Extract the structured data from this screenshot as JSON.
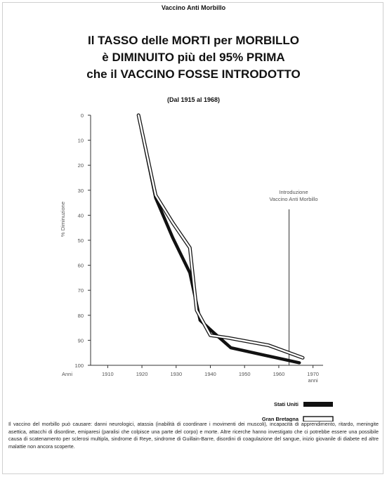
{
  "header": {
    "topline": "Vaccino Anti Morbillo",
    "title_lines": [
      "Il TASSO delle MORTI per MORBILLO",
      "è DIMINUITO più del 95% PRIMA",
      "che il VACCINO FOSSE INTRODOTTO"
    ],
    "subtitle": "(Dal 1915 al 1968)"
  },
  "chart_data": {
    "type": "line",
    "title": "",
    "xlabel": "Anni",
    "x_unit_label": "anni",
    "ylabel": "% Diminuzione",
    "xlim": [
      1905,
      1975
    ],
    "ylim": [
      0,
      100
    ],
    "y_inverted": true,
    "x_ticks": [
      1910,
      1920,
      1930,
      1940,
      1950,
      1960,
      1970
    ],
    "y_ticks": [
      0,
      10,
      20,
      30,
      40,
      50,
      60,
      70,
      80,
      90,
      100
    ],
    "series": [
      {
        "name": "Stati Uniti",
        "style": "solid-thick",
        "x": [
          1919,
          1924,
          1929,
          1934,
          1937,
          1941,
          1946,
          1956,
          1966
        ],
        "y": [
          0,
          33,
          49,
          63,
          82,
          87,
          93,
          96,
          99
        ]
      },
      {
        "name": "Gran Bretagna",
        "style": "double-outline",
        "x": [
          1919,
          1924,
          1929,
          1934,
          1936,
          1940,
          1945,
          1957,
          1967
        ],
        "y": [
          0,
          32,
          43,
          53,
          78,
          88,
          89,
          92,
          97
        ]
      }
    ],
    "annotation": {
      "text_lines": [
        "Introduzione",
        "Vaccino Anti Morbillo"
      ],
      "x": 1963
    },
    "legend_position": "bottom-right",
    "grid": false
  },
  "footer": {
    "text": "Il vaccino del morbillo può causare: danni neurologici, atassia (inabilità di coordinare i movimenti dei muscoli), incapacità di apprendimento, ritardo, meningite asettica, attacchi di disordine, emiparesi (paralisi che colpisce una parte del corpo) e morte. Altre ricerche hanno investigato che ci potrebbe essere una possibile causa di scatenamento per sclerosi multipla, sindrome di Reye, sindrome di Guillain-Barre, disordini di coagulazione del sangue, inizio giovanile di diabete ed altre malattie non ancora scoperte."
  },
  "colors": {
    "ink": "#111111",
    "axis": "#333333",
    "muted": "#555555"
  }
}
